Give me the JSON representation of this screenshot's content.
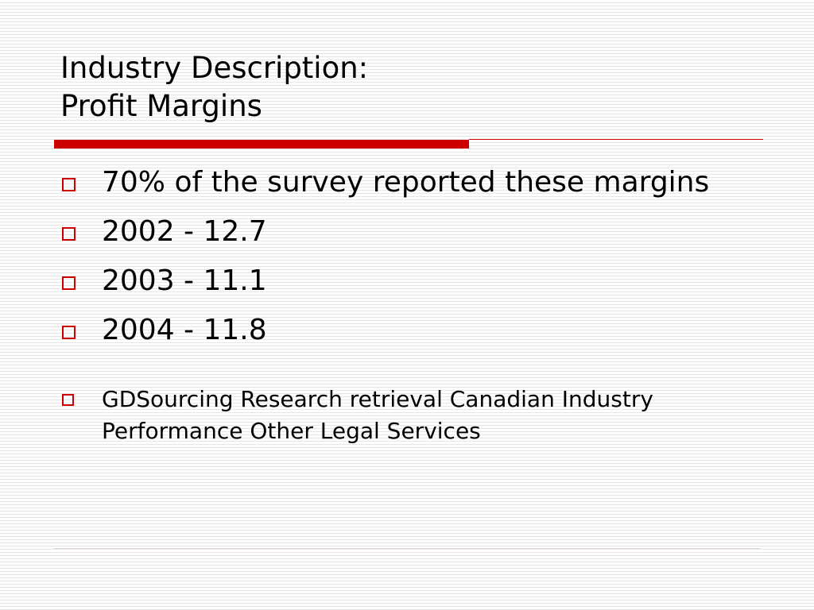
{
  "slide": {
    "title_line1": "Industry Description:",
    "title_line2": "Profit Margins",
    "accent_color": "#cc0000",
    "bullets": [
      {
        "text": "70% of the survey reported these margins",
        "marker": "hollow-square-icon"
      },
      {
        "text": "2002 - 12.7",
        "marker": "hollow-square-icon"
      },
      {
        "text": "2003 - 11.1",
        "marker": "hollow-square-icon"
      },
      {
        "text": "2004 - 11.8",
        "marker": "hollow-square-icon"
      },
      {
        "text": "GDSourcing Research retrieval Canadian Industry Performance Other Legal Services",
        "marker": "hollow-square-icon"
      }
    ]
  }
}
